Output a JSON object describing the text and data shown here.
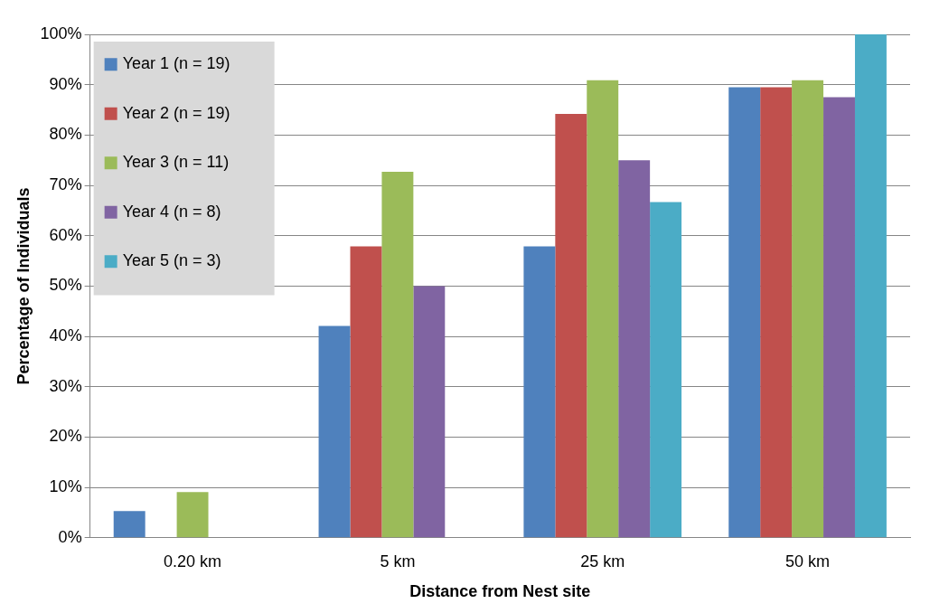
{
  "chart_data": {
    "type": "bar",
    "xlabel": "Distance from Nest site",
    "ylabel": "Percentage of Individuals",
    "categories": [
      "0.20 km",
      "5 km",
      "25 km",
      "50 km"
    ],
    "series": [
      {
        "name": "Year 1 (n = 19)",
        "color": "#4f81bd",
        "values": [
          5.3,
          42.1,
          57.9,
          89.5
        ]
      },
      {
        "name": "Year 2 (n = 19)",
        "color": "#c0504d",
        "values": [
          0,
          57.9,
          84.2,
          89.5
        ]
      },
      {
        "name": "Year 3 (n = 11)",
        "color": "#9bbb59",
        "values": [
          9.1,
          72.7,
          90.9,
          90.9
        ]
      },
      {
        "name": "Year 4 (n = 8)",
        "color": "#8064a2",
        "values": [
          0,
          50,
          75,
          87.5
        ]
      },
      {
        "name": "Year 5 (n = 3)",
        "color": "#4bacc6",
        "values": [
          0,
          0,
          66.7,
          100
        ]
      }
    ],
    "ylim": [
      0,
      100
    ],
    "yticks": [
      {
        "value": 0,
        "label": "0%"
      },
      {
        "value": 10,
        "label": "10%"
      },
      {
        "value": 20,
        "label": "20%"
      },
      {
        "value": 30,
        "label": "30%"
      },
      {
        "value": 40,
        "label": "40%"
      },
      {
        "value": 50,
        "label": "50%"
      },
      {
        "value": 60,
        "label": "60%"
      },
      {
        "value": 70,
        "label": "70%"
      },
      {
        "value": 80,
        "label": "80%"
      },
      {
        "value": 90,
        "label": "90%"
      },
      {
        "value": 100,
        "label": "100%"
      }
    ],
    "grid": "y",
    "legend": "top left"
  }
}
